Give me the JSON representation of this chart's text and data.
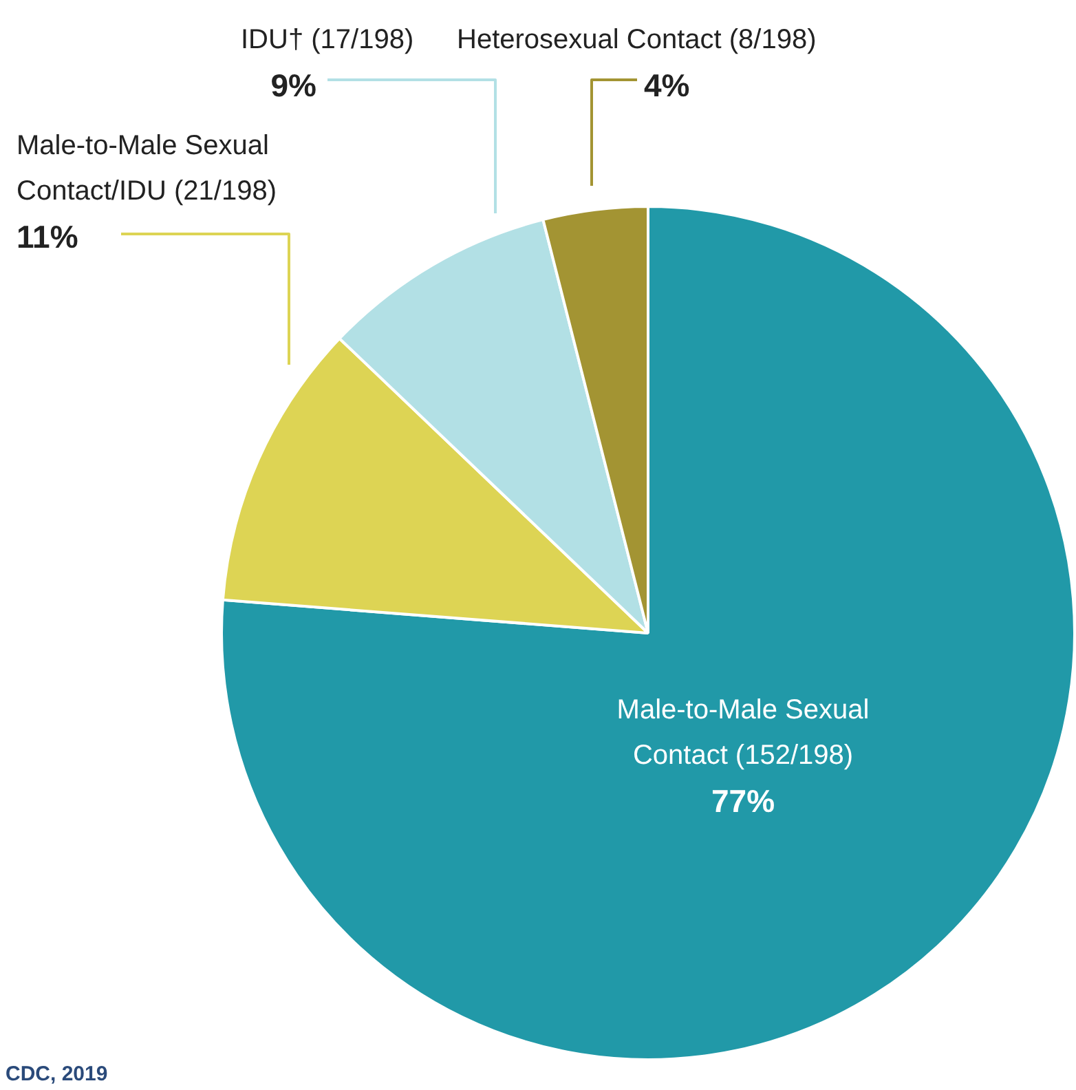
{
  "chart_data": {
    "type": "pie",
    "categories": [
      "Male-to-Male Sexual Contact (152/198)",
      "Male-to-Male Sexual Contact/IDU (21/198)",
      "IDU† (17/198)",
      "Heterosexual Contact (8/198)"
    ],
    "values": [
      77,
      11,
      9,
      4
    ],
    "colors": [
      "#2199a8",
      "#ddd454",
      "#b2e0e5",
      "#a39433"
    ],
    "value_labels": [
      "77%",
      "11%",
      "9%",
      "4%"
    ],
    "legend": false,
    "annotations": [
      "CDC, 2019"
    ]
  }
}
